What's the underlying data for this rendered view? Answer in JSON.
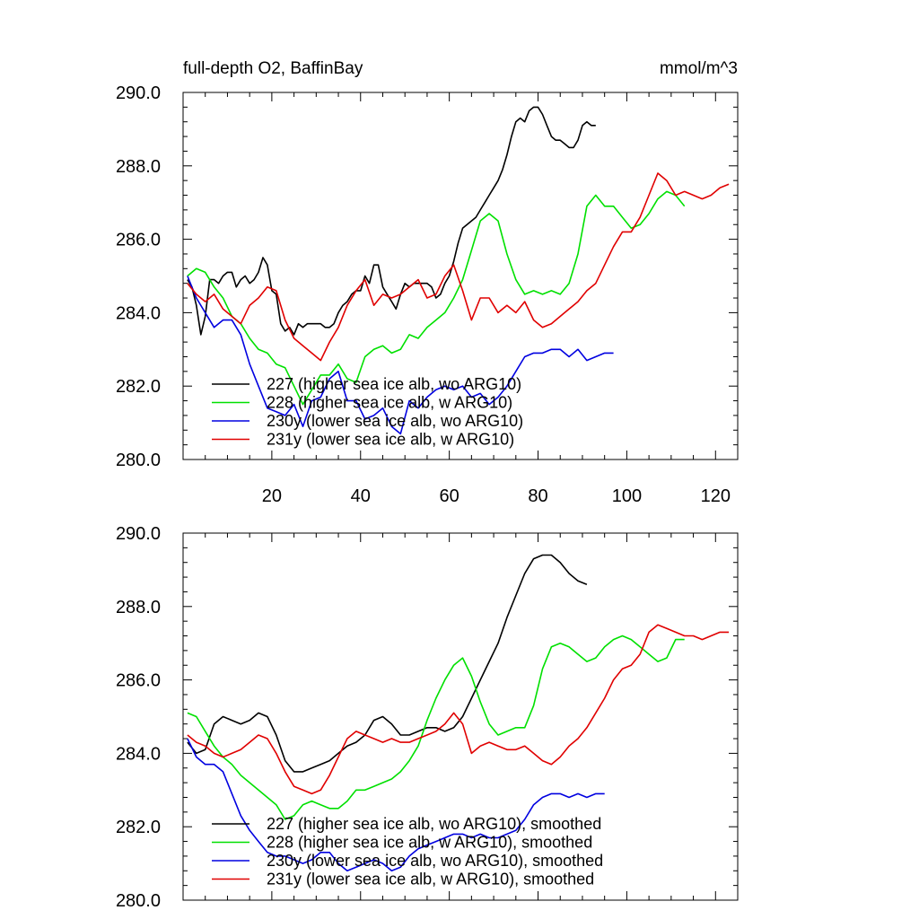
{
  "chart_data": [
    {
      "type": "line",
      "title": "full-depth O2, BaffinBay",
      "units_label": "mmol/m^3",
      "xlim": [
        0,
        125
      ],
      "ylim": [
        280,
        290
      ],
      "yticks": [
        "280.0",
        "282.0",
        "284.0",
        "286.0",
        "288.0",
        "290.0"
      ],
      "xticks": [
        "20",
        "40",
        "60",
        "80",
        "100",
        "120"
      ],
      "series": [
        {
          "name": "227 (higher sea ice alb, wo ARG10)",
          "color": "#000000",
          "x": [
            1,
            2,
            3,
            4,
            5,
            6,
            7,
            8,
            9,
            10,
            11,
            12,
            13,
            14,
            15,
            16,
            17,
            18,
            19,
            20,
            21,
            22,
            23,
            24,
            25,
            26,
            27,
            28,
            29,
            30,
            31,
            32,
            33,
            34,
            35,
            36,
            37,
            38,
            39,
            40,
            41,
            42,
            43,
            44,
            45,
            46,
            47,
            48,
            49,
            50,
            51,
            52,
            53,
            54,
            55,
            56,
            57,
            58,
            59,
            60,
            61,
            62,
            63,
            64,
            65,
            66,
            67,
            68,
            69,
            70,
            71,
            72,
            73,
            74,
            75,
            76,
            77,
            78,
            79,
            80,
            81,
            82,
            83,
            84,
            85,
            86,
            87,
            88,
            89,
            90,
            91,
            92,
            93
          ],
          "values": [
            284.9,
            284.7,
            284.2,
            283.4,
            283.9,
            284.9,
            284.9,
            284.8,
            285.0,
            285.1,
            285.1,
            284.7,
            284.9,
            285.0,
            284.8,
            284.9,
            285.1,
            285.5,
            285.3,
            284.6,
            284.5,
            283.7,
            283.5,
            283.6,
            283.4,
            283.7,
            283.6,
            283.7,
            283.7,
            283.7,
            283.7,
            283.6,
            283.6,
            283.7,
            284.0,
            284.2,
            284.3,
            284.5,
            284.6,
            284.6,
            285.0,
            284.8,
            285.3,
            285.3,
            284.7,
            284.5,
            284.3,
            284.1,
            284.5,
            284.8,
            284.7,
            284.8,
            284.8,
            284.8,
            284.8,
            284.7,
            284.4,
            284.5,
            284.8,
            285.0,
            285.4,
            285.9,
            286.3,
            286.4,
            286.5,
            286.6,
            286.8,
            287.0,
            287.2,
            287.4,
            287.6,
            287.9,
            288.3,
            288.8,
            289.2,
            289.3,
            289.2,
            289.5,
            289.6,
            289.6,
            289.4,
            289.1,
            288.8,
            288.7,
            288.7,
            288.6,
            288.5,
            288.5,
            288.7,
            289.1,
            289.2,
            289.1,
            289.1
          ],
          "_x_note": "series 227 index-aligned; trailing points trimmed below"
        },
        {
          "name": "228 (higher sea ice alb, w ARG10)",
          "color": "#00e000",
          "x": [
            1,
            3,
            5,
            7,
            9,
            11,
            13,
            15,
            17,
            19,
            21,
            23,
            25,
            27,
            29,
            31,
            33,
            35,
            37,
            39,
            41,
            43,
            45,
            47,
            49,
            51,
            53,
            55,
            57,
            59,
            61,
            63,
            65,
            67,
            69,
            71,
            73,
            75,
            77,
            79,
            81,
            83,
            85,
            87,
            89,
            91,
            93,
            95,
            97,
            99,
            101,
            103,
            105,
            107,
            109,
            111,
            113
          ],
          "values": [
            285.0,
            285.2,
            285.1,
            284.7,
            284.4,
            283.9,
            283.7,
            283.3,
            283.0,
            282.9,
            282.6,
            282.5,
            282.0,
            281.5,
            281.9,
            282.3,
            282.3,
            282.6,
            282.2,
            282.1,
            282.8,
            283.0,
            283.1,
            282.9,
            283.0,
            283.4,
            283.3,
            283.6,
            283.8,
            284.0,
            284.4,
            284.9,
            285.7,
            286.5,
            286.7,
            286.5,
            285.6,
            284.9,
            284.5,
            284.6,
            284.5,
            284.6,
            284.5,
            284.8,
            285.6,
            286.9,
            287.2,
            286.9,
            286.9,
            286.6,
            286.3,
            286.4,
            286.7,
            287.1,
            287.3,
            287.2,
            286.9
          ]
        },
        {
          "name": "230y (lower sea ice alb, wo ARG10)",
          "color": "#0000e0",
          "x": [
            1,
            3,
            5,
            7,
            9,
            11,
            13,
            15,
            17,
            19,
            21,
            23,
            25,
            27,
            29,
            31,
            33,
            35,
            37,
            39,
            41,
            43,
            45,
            47,
            49,
            51,
            53,
            55,
            57,
            59,
            61,
            63,
            65,
            67,
            69,
            71,
            73,
            75,
            77,
            79,
            81,
            83,
            85,
            87,
            89,
            91,
            93,
            95,
            97
          ],
          "values": [
            285.0,
            284.4,
            284.0,
            283.6,
            283.8,
            283.8,
            283.4,
            282.6,
            282.0,
            281.4,
            281.3,
            281.2,
            281.5,
            280.9,
            281.6,
            281.7,
            282.2,
            282.4,
            281.6,
            281.6,
            281.1,
            281.2,
            281.4,
            280.9,
            280.7,
            281.6,
            281.4,
            281.7,
            281.9,
            282.0,
            281.9,
            282.0,
            281.7,
            281.8,
            281.5,
            281.7,
            282.0,
            282.4,
            282.8,
            282.9,
            282.9,
            283.0,
            283.0,
            282.8,
            283.0,
            282.7,
            282.8,
            282.9,
            282.9
          ]
        },
        {
          "name": "231y (lower sea ice alb, w ARG10)",
          "color": "#e00000",
          "x": [
            1,
            3,
            5,
            7,
            9,
            11,
            13,
            15,
            17,
            19,
            21,
            23,
            25,
            27,
            29,
            31,
            33,
            35,
            37,
            39,
            41,
            43,
            45,
            47,
            49,
            51,
            53,
            55,
            57,
            59,
            61,
            63,
            65,
            67,
            69,
            71,
            73,
            75,
            77,
            79,
            81,
            83,
            85,
            87,
            89,
            91,
            93,
            95,
            97,
            99,
            101,
            103,
            105,
            107,
            109,
            111,
            113,
            115,
            117,
            119,
            121,
            123
          ],
          "values": [
            284.8,
            284.5,
            284.3,
            284.5,
            284.1,
            283.9,
            283.7,
            284.2,
            284.4,
            284.7,
            284.6,
            283.8,
            283.3,
            283.1,
            282.9,
            282.7,
            283.2,
            283.6,
            284.2,
            284.6,
            284.9,
            284.2,
            284.5,
            284.4,
            284.5,
            284.7,
            284.9,
            284.4,
            284.5,
            285.0,
            285.3,
            284.6,
            283.8,
            284.4,
            284.4,
            284.0,
            284.2,
            284.0,
            284.3,
            283.8,
            283.6,
            283.7,
            283.9,
            284.1,
            284.3,
            284.6,
            284.8,
            285.3,
            285.8,
            286.2,
            286.2,
            286.6,
            287.2,
            287.8,
            287.6,
            287.2,
            287.3,
            287.2,
            287.1,
            287.2,
            287.4,
            287.5
          ]
        }
      ]
    },
    {
      "type": "line",
      "title": "",
      "units_label": "",
      "xlim": [
        0,
        125
      ],
      "ylim": [
        280,
        290
      ],
      "yticks": [
        "280.0",
        "282.0",
        "284.0",
        "286.0",
        "288.0",
        "290.0"
      ],
      "xticks": [],
      "series": [
        {
          "name": "227 (higher sea ice alb, wo ARG10), smoothed",
          "color": "#000000",
          "x": [
            1,
            3,
            5,
            7,
            9,
            11,
            13,
            15,
            17,
            19,
            21,
            23,
            25,
            27,
            29,
            31,
            33,
            35,
            37,
            39,
            41,
            43,
            45,
            47,
            49,
            51,
            53,
            55,
            57,
            59,
            61,
            63,
            65,
            67,
            69,
            71,
            73,
            75,
            77,
            79,
            81,
            83,
            85,
            87,
            89,
            91
          ],
          "values": [
            284.3,
            284.0,
            284.1,
            284.8,
            285.0,
            284.9,
            284.8,
            284.9,
            285.1,
            285.0,
            284.5,
            283.8,
            283.5,
            283.5,
            283.6,
            283.7,
            283.8,
            284.0,
            284.2,
            284.3,
            284.5,
            284.9,
            285.0,
            284.8,
            284.5,
            284.5,
            284.6,
            284.7,
            284.7,
            284.6,
            284.7,
            285.0,
            285.5,
            286.0,
            286.5,
            287.0,
            287.7,
            288.3,
            288.9,
            289.3,
            289.4,
            289.4,
            289.2,
            288.9,
            288.7,
            288.6
          ]
        },
        {
          "name": "228 (higher sea ice alb, w ARG10), smoothed",
          "color": "#00e000",
          "x": [
            1,
            3,
            5,
            7,
            9,
            11,
            13,
            15,
            17,
            19,
            21,
            23,
            25,
            27,
            29,
            31,
            33,
            35,
            37,
            39,
            41,
            43,
            45,
            47,
            49,
            51,
            53,
            55,
            57,
            59,
            61,
            63,
            65,
            67,
            69,
            71,
            73,
            75,
            77,
            79,
            81,
            83,
            85,
            87,
            89,
            91,
            93,
            95,
            97,
            99,
            101,
            103,
            105,
            107,
            109,
            111,
            113
          ],
          "values": [
            285.1,
            285.0,
            284.6,
            284.2,
            283.9,
            283.7,
            283.4,
            283.2,
            283.0,
            282.8,
            282.6,
            282.2,
            282.3,
            282.6,
            282.7,
            282.6,
            282.5,
            282.5,
            282.7,
            283.0,
            283.0,
            283.1,
            283.2,
            283.3,
            283.5,
            283.8,
            284.2,
            284.9,
            285.5,
            286.0,
            286.4,
            286.6,
            286.1,
            285.4,
            284.8,
            284.5,
            284.6,
            284.7,
            284.7,
            285.3,
            286.3,
            286.9,
            287.0,
            286.9,
            286.7,
            286.5,
            286.6,
            286.9,
            287.1,
            287.2,
            287.1,
            286.9,
            286.7,
            286.5,
            286.6,
            287.1,
            287.1
          ]
        },
        {
          "name": "230y (lower sea ice alb, wo ARG10), smoothed",
          "color": "#0000e0",
          "x": [
            1,
            3,
            5,
            7,
            9,
            11,
            13,
            15,
            17,
            19,
            21,
            23,
            25,
            27,
            29,
            31,
            33,
            35,
            37,
            39,
            41,
            43,
            45,
            47,
            49,
            51,
            53,
            55,
            57,
            59,
            61,
            63,
            65,
            67,
            69,
            71,
            73,
            75,
            77,
            79,
            81,
            83,
            85,
            87,
            89,
            91,
            93,
            95
          ],
          "values": [
            284.4,
            283.9,
            283.7,
            283.7,
            283.5,
            282.9,
            282.3,
            281.9,
            281.6,
            281.3,
            281.2,
            281.2,
            281.1,
            281.0,
            281.1,
            281.3,
            281.3,
            281.0,
            280.8,
            280.9,
            281.0,
            281.1,
            281.0,
            280.8,
            280.9,
            281.2,
            281.4,
            281.5,
            281.6,
            281.7,
            281.8,
            281.8,
            281.7,
            281.8,
            281.7,
            281.7,
            281.8,
            281.9,
            282.2,
            282.6,
            282.8,
            282.9,
            282.9,
            282.8,
            282.9,
            282.8,
            282.9,
            282.9
          ]
        },
        {
          "name": "231y (lower sea ice alb, w ARG10), smoothed",
          "color": "#e00000",
          "x": [
            1,
            3,
            5,
            7,
            9,
            11,
            13,
            15,
            17,
            19,
            21,
            23,
            25,
            27,
            29,
            31,
            33,
            35,
            37,
            39,
            41,
            43,
            45,
            47,
            49,
            51,
            53,
            55,
            57,
            59,
            61,
            63,
            65,
            67,
            69,
            71,
            73,
            75,
            77,
            79,
            81,
            83,
            85,
            87,
            89,
            91,
            93,
            95,
            97,
            99,
            101,
            103,
            105,
            107,
            109,
            111,
            113,
            115,
            117,
            119,
            121,
            123
          ],
          "values": [
            284.5,
            284.3,
            284.2,
            284.0,
            283.9,
            284.0,
            284.1,
            284.3,
            284.5,
            284.4,
            284.0,
            283.5,
            283.1,
            283.0,
            282.9,
            283.0,
            283.4,
            283.9,
            284.4,
            284.6,
            284.5,
            284.4,
            284.3,
            284.4,
            284.3,
            284.3,
            284.4,
            284.5,
            284.6,
            284.8,
            285.1,
            284.8,
            284.0,
            284.2,
            284.3,
            284.2,
            284.1,
            284.1,
            284.2,
            284.0,
            283.8,
            283.7,
            283.9,
            284.2,
            284.4,
            284.7,
            285.1,
            285.5,
            286.0,
            286.3,
            286.4,
            286.7,
            287.3,
            287.5,
            287.4,
            287.3,
            287.2,
            287.2,
            287.1,
            287.2,
            287.3,
            287.3
          ]
        }
      ]
    }
  ]
}
